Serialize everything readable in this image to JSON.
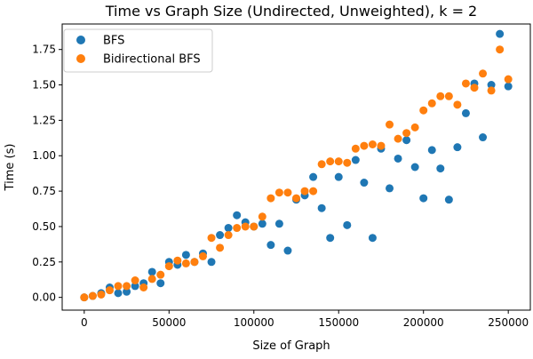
{
  "colors": {
    "bfs": "#1f77b4",
    "bidirectional_bfs": "#ff7f0e",
    "axes": "#000000",
    "background": "#ffffff"
  },
  "chart_data": {
    "type": "scatter",
    "title": "Time vs Graph Size (Undirected, Unweighted), k = 2",
    "xlabel": "Size of Graph",
    "ylabel": "Time (s)",
    "xlim": [
      -13000,
      263000
    ],
    "ylim": [
      -0.09,
      1.93
    ],
    "xticks": [
      0,
      50000,
      100000,
      150000,
      200000,
      250000
    ],
    "xtick_labels": [
      "0",
      "50000",
      "100000",
      "150000",
      "200000",
      "250000"
    ],
    "yticks": [
      0.0,
      0.25,
      0.5,
      0.75,
      1.0,
      1.25,
      1.5,
      1.75
    ],
    "ytick_labels": [
      "0.00",
      "0.25",
      "0.50",
      "0.75",
      "1.00",
      "1.25",
      "1.50",
      "1.75"
    ],
    "grid": false,
    "legend_position": "upper-left",
    "series": [
      {
        "name": "BFS",
        "color": "#1f77b4",
        "x": [
          0,
          5000,
          10000,
          15000,
          20000,
          25000,
          30000,
          35000,
          40000,
          45000,
          50000,
          55000,
          60000,
          65000,
          70000,
          75000,
          80000,
          85000,
          90000,
          95000,
          100000,
          105000,
          110000,
          115000,
          120000,
          125000,
          130000,
          135000,
          140000,
          145000,
          150000,
          155000,
          160000,
          165000,
          170000,
          175000,
          180000,
          185000,
          190000,
          195000,
          200000,
          205000,
          210000,
          215000,
          220000,
          225000,
          230000,
          235000,
          240000,
          245000,
          250000
        ],
        "y": [
          0.0,
          0.01,
          0.03,
          0.07,
          0.03,
          0.04,
          0.08,
          0.1,
          0.18,
          0.1,
          0.25,
          0.23,
          0.3,
          0.25,
          0.31,
          0.25,
          0.44,
          0.49,
          0.58,
          0.53,
          0.5,
          0.52,
          0.37,
          0.52,
          0.33,
          0.69,
          0.72,
          0.85,
          0.63,
          0.42,
          0.85,
          0.51,
          0.97,
          0.81,
          0.42,
          1.05,
          0.77,
          0.98,
          1.11,
          0.92,
          0.7,
          1.04,
          0.91,
          0.69,
          1.06,
          1.3,
          1.51,
          1.13,
          1.5,
          1.86,
          1.49
        ]
      },
      {
        "name": "Bidirectional BFS",
        "color": "#ff7f0e",
        "x": [
          0,
          5000,
          10000,
          15000,
          20000,
          25000,
          30000,
          35000,
          40000,
          45000,
          50000,
          55000,
          60000,
          65000,
          70000,
          75000,
          80000,
          85000,
          90000,
          95000,
          100000,
          105000,
          110000,
          115000,
          120000,
          125000,
          130000,
          135000,
          140000,
          145000,
          150000,
          155000,
          160000,
          165000,
          170000,
          175000,
          180000,
          185000,
          190000,
          195000,
          200000,
          205000,
          210000,
          215000,
          220000,
          225000,
          230000,
          235000,
          240000,
          245000,
          250000
        ],
        "y": [
          0.0,
          0.01,
          0.02,
          0.05,
          0.08,
          0.08,
          0.12,
          0.07,
          0.13,
          0.16,
          0.22,
          0.26,
          0.24,
          0.25,
          0.29,
          0.42,
          0.35,
          0.44,
          0.49,
          0.5,
          0.5,
          0.57,
          0.7,
          0.74,
          0.74,
          0.7,
          0.75,
          0.75,
          0.94,
          0.96,
          0.96,
          0.95,
          1.05,
          1.07,
          1.08,
          1.07,
          1.22,
          1.12,
          1.16,
          1.2,
          1.32,
          1.37,
          1.42,
          1.42,
          1.36,
          1.51,
          1.48,
          1.58,
          1.46,
          1.75,
          1.54
        ]
      }
    ]
  }
}
